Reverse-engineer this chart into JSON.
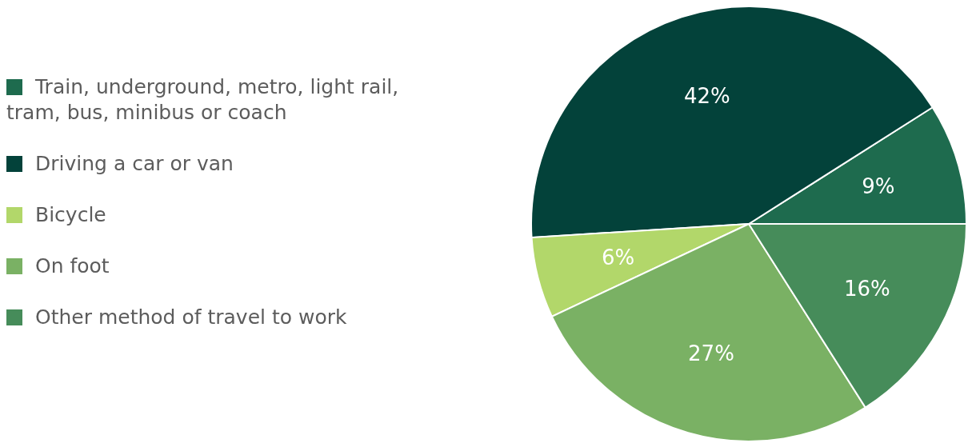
{
  "chart_data": {
    "type": "pie",
    "categories": [
      "Train, underground, metro, light rail, tram, bus, minibus or coach",
      "Driving a car or van",
      "Bicycle",
      "On foot",
      "Other method of travel to work"
    ],
    "values": [
      9,
      42,
      6,
      27,
      16
    ],
    "colors": [
      "#1e6b4e",
      "#03423a",
      "#b2d76a",
      "#7ab164",
      "#468c5a"
    ],
    "value_labels": [
      "9%",
      "42%",
      "6%",
      "27%",
      "16%"
    ],
    "legend": "left"
  }
}
